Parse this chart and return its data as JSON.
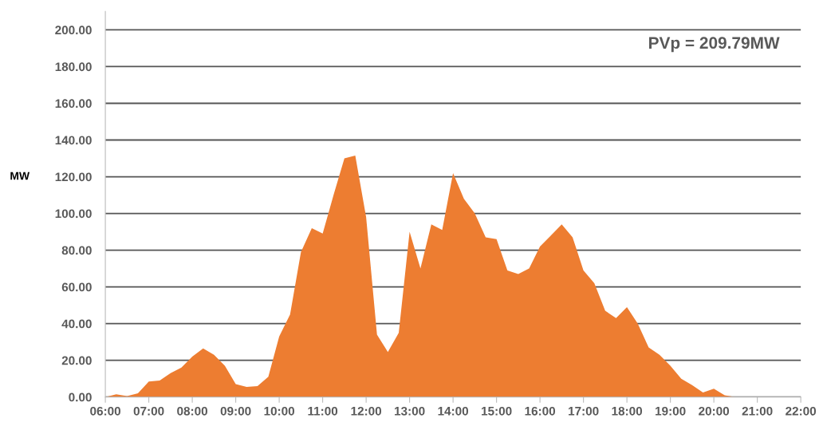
{
  "chart_data": {
    "type": "area",
    "ylabel": "MW",
    "annotations": [
      "PVp = 209.79MW"
    ],
    "x": [
      6.0,
      6.25,
      6.5,
      6.75,
      7.0,
      7.25,
      7.5,
      7.75,
      8.0,
      8.25,
      8.5,
      8.75,
      9.0,
      9.25,
      9.5,
      9.75,
      10.0,
      10.25,
      10.5,
      10.75,
      11.0,
      11.25,
      11.5,
      11.75,
      12.0,
      12.25,
      12.5,
      12.75,
      13.0,
      13.25,
      13.5,
      13.75,
      14.0,
      14.25,
      14.5,
      14.75,
      15.0,
      15.25,
      15.5,
      15.75,
      16.0,
      16.25,
      16.5,
      16.75,
      17.0,
      17.25,
      17.5,
      17.75,
      18.0,
      18.25,
      18.5,
      18.75,
      19.0,
      19.25,
      19.5,
      19.75,
      20.0,
      20.25,
      20.5
    ],
    "series": [
      {
        "color": "#ed7d31",
        "values": [
          0,
          1.5,
          0.5,
          2,
          8.5,
          9,
          13,
          16,
          22,
          26.5,
          23,
          17,
          7,
          5.5,
          6,
          11,
          33,
          45,
          79,
          92,
          89,
          110,
          130,
          131.5,
          98,
          34,
          24.5,
          35,
          90,
          70,
          94,
          91,
          122,
          108,
          100,
          87,
          86,
          69,
          67,
          70,
          82,
          88,
          94,
          87,
          69,
          62,
          47,
          43,
          49,
          40,
          27,
          23,
          17,
          10,
          6.5,
          2.5,
          4.5,
          1,
          0
        ]
      }
    ],
    "xlim": [
      6,
      22
    ],
    "xticks": [
      {
        "value": 6,
        "label": "06:00"
      },
      {
        "value": 7,
        "label": "07:00"
      },
      {
        "value": 8,
        "label": "08:00"
      },
      {
        "value": 9,
        "label": "09:00"
      },
      {
        "value": 10,
        "label": "10:00"
      },
      {
        "value": 11,
        "label": "11:00"
      },
      {
        "value": 12,
        "label": "12:00"
      },
      {
        "value": 13,
        "label": "13:00"
      },
      {
        "value": 14,
        "label": "14:00"
      },
      {
        "value": 15,
        "label": "15:00"
      },
      {
        "value": 16,
        "label": "16:00"
      },
      {
        "value": 17,
        "label": "17:00"
      },
      {
        "value": 18,
        "label": "18:00"
      },
      {
        "value": 19,
        "label": "19:00"
      },
      {
        "value": 20,
        "label": "20:00"
      },
      {
        "value": 21,
        "label": "21:00"
      },
      {
        "value": 22,
        "label": "22:00"
      }
    ],
    "ylim": [
      0,
      210
    ],
    "yticks": [
      {
        "value": 0,
        "label": "0.00"
      },
      {
        "value": 20,
        "label": "20.00"
      },
      {
        "value": 40,
        "label": "40.00"
      },
      {
        "value": 60,
        "label": "60.00"
      },
      {
        "value": 80,
        "label": "80.00"
      },
      {
        "value": 100,
        "label": "100.00"
      },
      {
        "value": 120,
        "label": "120.00"
      },
      {
        "value": 140,
        "label": "140.00"
      },
      {
        "value": 160,
        "label": "160.00"
      },
      {
        "value": 180,
        "label": "180.00"
      },
      {
        "value": 200,
        "label": "200.00"
      }
    ],
    "grid": "y"
  }
}
